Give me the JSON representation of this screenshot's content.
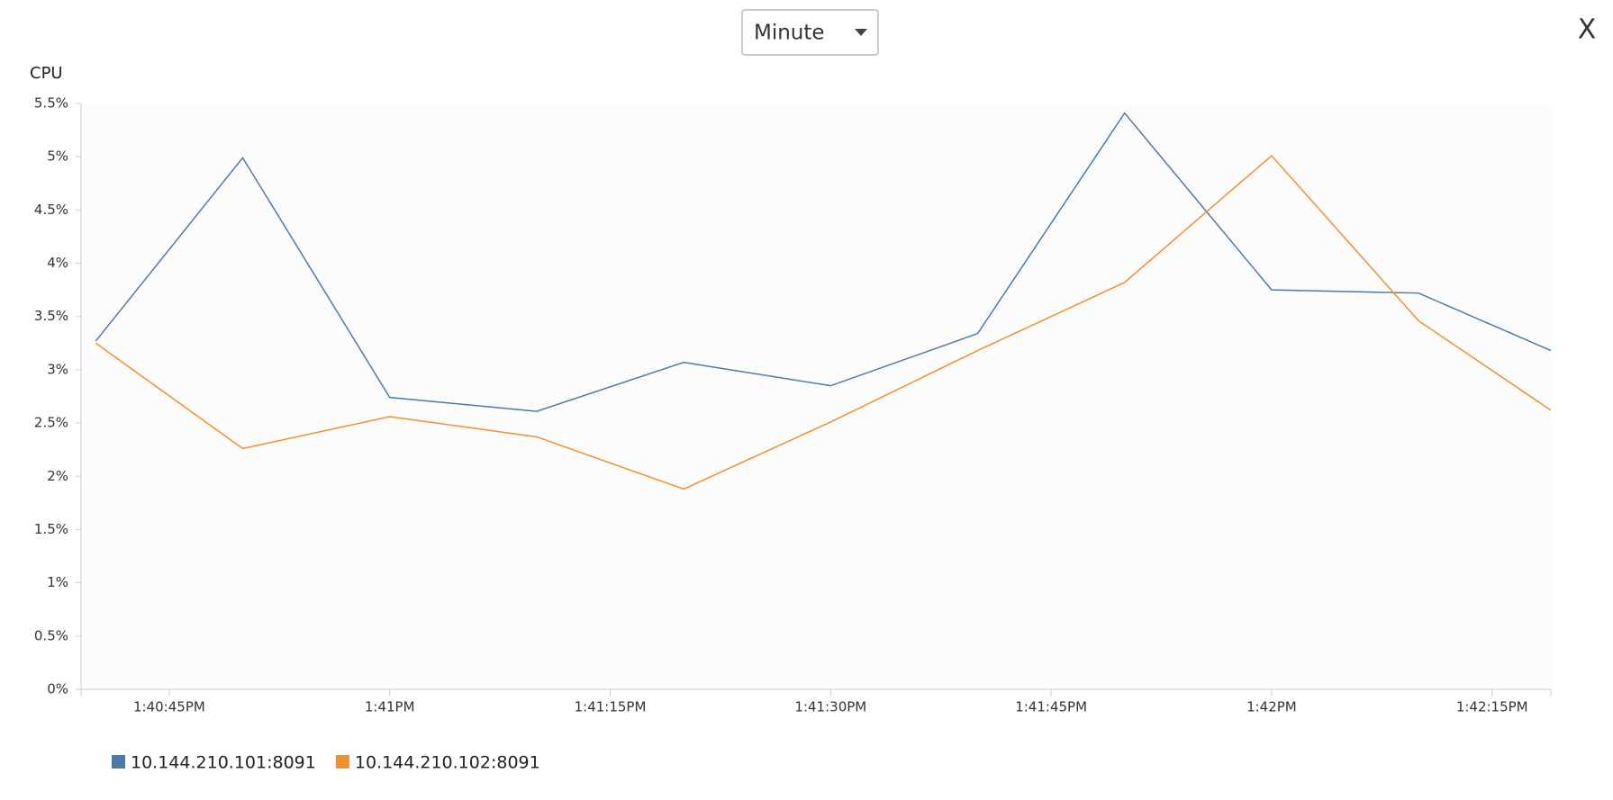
{
  "ui": {
    "dropdown": "Minute",
    "close": "X"
  },
  "chart_data": {
    "type": "line",
    "y_label": "CPU",
    "x": [
      "13:40:40",
      "13:40:50",
      "13:41:00",
      "13:41:10",
      "13:41:20",
      "13:41:30",
      "13:41:40",
      "13:41:50",
      "13:42:00",
      "13:42:10",
      "13:42:19"
    ],
    "xlim": [
      "13:40:39",
      "13:42:19"
    ],
    "xticks": [
      {
        "value": "13:40:45",
        "label": "1:40:45PM"
      },
      {
        "value": "13:41:00",
        "label": "1:41PM"
      },
      {
        "value": "13:41:15",
        "label": "1:41:15PM"
      },
      {
        "value": "13:41:30",
        "label": "1:41:30PM"
      },
      {
        "value": "13:41:45",
        "label": "1:41:45PM"
      },
      {
        "value": "13:42:00",
        "label": "1:42PM"
      },
      {
        "value": "13:42:15",
        "label": "1:42:15PM"
      }
    ],
    "ylim": [
      0,
      5.5
    ],
    "yticks": [
      {
        "value": 0,
        "label": "0%"
      },
      {
        "value": 0.5,
        "label": "0.5%"
      },
      {
        "value": 1,
        "label": "1%"
      },
      {
        "value": 1.5,
        "label": "1.5%"
      },
      {
        "value": 2,
        "label": "2%"
      },
      {
        "value": 2.5,
        "label": "2.5%"
      },
      {
        "value": 3,
        "label": "3%"
      },
      {
        "value": 3.5,
        "label": "3.5%"
      },
      {
        "value": 4,
        "label": "4%"
      },
      {
        "value": 4.5,
        "label": "4.5%"
      },
      {
        "value": 5,
        "label": "5%"
      },
      {
        "value": 5.5,
        "label": "5.5%"
      }
    ],
    "series": [
      {
        "name": "10.144.210.101:8091",
        "color": "#4e79a7",
        "values": [
          3.27,
          4.99,
          2.74,
          2.61,
          3.07,
          2.85,
          3.34,
          5.41,
          3.75,
          3.72,
          3.18
        ]
      },
      {
        "name": "10.144.210.102:8091",
        "color": "#f28e2b",
        "values": [
          3.25,
          2.26,
          2.56,
          2.37,
          1.88,
          2.51,
          3.18,
          3.82,
          5.01,
          3.46,
          2.62
        ]
      }
    ]
  }
}
